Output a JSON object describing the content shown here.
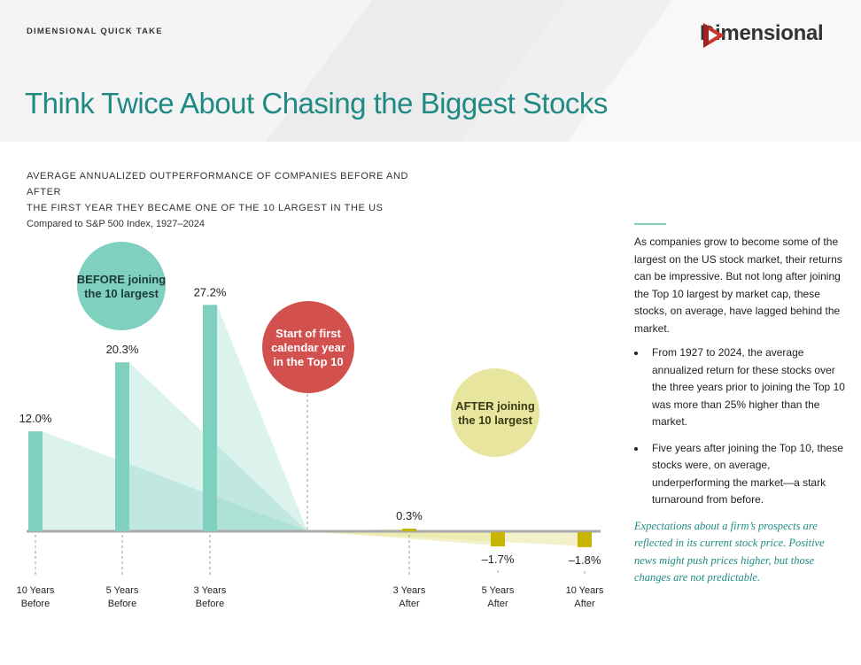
{
  "header": {
    "eyebrow": "DIMENSIONAL QUICK TAKE",
    "logo_text": "Dimensional",
    "title": "Think Twice About Chasing the Biggest Stocks"
  },
  "subtitle": {
    "line1": "AVERAGE ANNUALIZED OUTPERFORMANCE OF COMPANIES BEFORE AND AFTER",
    "line2": "THE FIRST YEAR THEY BECAME ONE OF THE 10 LARGEST IN THE US",
    "note": "Compared to S&P 500 Index, 1927–2024"
  },
  "bubbles": {
    "before": [
      "BEFORE joining",
      "the 10 largest"
    ],
    "start": [
      "Start of first",
      "calendar year",
      "in the Top 10"
    ],
    "after": [
      "AFTER joining",
      "the 10 largest"
    ]
  },
  "sidebar": {
    "intro": "As companies grow to become some of the largest on the US stock market, their returns can be impressive. But not long after joining the Top 10 largest by market cap, these stocks, on average, have lagged behind the market.",
    "bullets": [
      "From 1927 to 2024, the average annualized return for these stocks over the three years prior to joining the Top 10 was more than 25% higher than the market.",
      "Five years after joining the Top 10, these stocks were, on average, underperforming the market—a stark turnaround from before."
    ],
    "quote": "Expectations about a firm’s prospects are reflected in its current stock price. Positive news might push prices higher, but those changes are not predictable."
  },
  "colors": {
    "teal": "#7fd0bf",
    "teal_dark": "#1f8a84",
    "red": "#d2504d",
    "yellow": "#c9b400",
    "yellow_light": "#e7e59e"
  },
  "chart_data": {
    "type": "bar",
    "categories": [
      [
        "10 Years",
        "Before"
      ],
      [
        "5 Years",
        "Before"
      ],
      [
        "3 Years",
        "Before"
      ],
      [
        "3 Years",
        "After"
      ],
      [
        "5 Years",
        "After"
      ],
      [
        "10 Years",
        "After"
      ]
    ],
    "values": [
      12.0,
      20.3,
      27.2,
      0.3,
      -1.7,
      -1.8
    ],
    "labels": [
      "12.0%",
      "20.3%",
      "27.2%",
      "0.3%",
      "–1.7%",
      "–1.8%"
    ],
    "group": [
      "before",
      "before",
      "before",
      "after",
      "after",
      "after"
    ],
    "title": "",
    "xlabel": "",
    "ylabel": "",
    "grid": false
  }
}
